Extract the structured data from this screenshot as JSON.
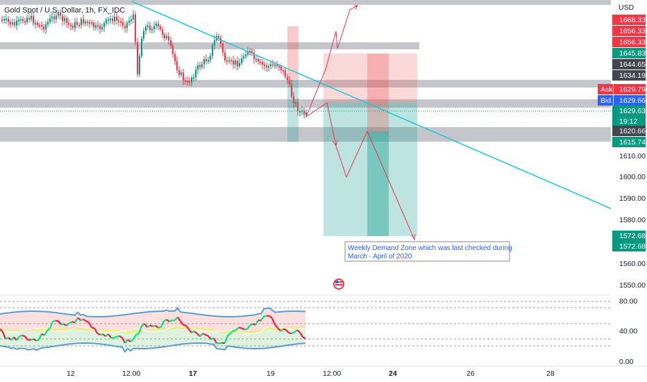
{
  "symbol": {
    "title": "Gold Spot / U.S. Dollar, 1h, FX_IDC"
  },
  "currency": "USD",
  "price_axis": {
    "ticks": [
      "1610.00",
      "1600.00",
      "1590.00",
      "1580.00",
      "1560.00",
      "1550.00"
    ]
  },
  "price_tags": [
    {
      "label": "1668.33",
      "color": "#f23645"
    },
    {
      "label": "1656.33",
      "color": "#f23645"
    },
    {
      "label": "1656.33",
      "color": "#f23645"
    },
    {
      "label": "1645.83",
      "color": "#089981"
    },
    {
      "label": "1644.65",
      "color": "#434651"
    },
    {
      "label": "1634.19",
      "color": "#434651"
    },
    {
      "label": "1629.63",
      "color": "#089981"
    },
    {
      "label": "19:12",
      "color": "#089981"
    },
    {
      "label": "1620.66",
      "color": "#434651"
    },
    {
      "label": "1615.74",
      "color": "#089981"
    },
    {
      "label": "1572.68",
      "color": "#089981"
    },
    {
      "label": "1572.68",
      "color": "#089981"
    }
  ],
  "ask": {
    "label": "Ask",
    "value": "1629.79",
    "color": "#f23645"
  },
  "bid": {
    "label": "Bid",
    "value": "1629.66",
    "color": "#2962ff"
  },
  "annotation": {
    "line1": "Weekly Demand Zone which was last checked during",
    "line2": "March - April of 2020"
  },
  "oscillator_axis": {
    "ticks": [
      "80.00",
      "40.00",
      "0.00"
    ]
  },
  "time_axis": {
    "ticks": [
      "12",
      "12:00",
      "17",
      "19",
      "12:00",
      "24",
      "26",
      "28"
    ]
  },
  "colors": {
    "trendline": "#26c6da",
    "zone": "#9598a1",
    "short_target": "#26a69a",
    "short_stop": "#ef5350",
    "bull_candle": "#089981",
    "bear_candle": "#f23645",
    "arrow": "#f23645"
  },
  "icons": {
    "flag": "us-flag-icon"
  }
}
